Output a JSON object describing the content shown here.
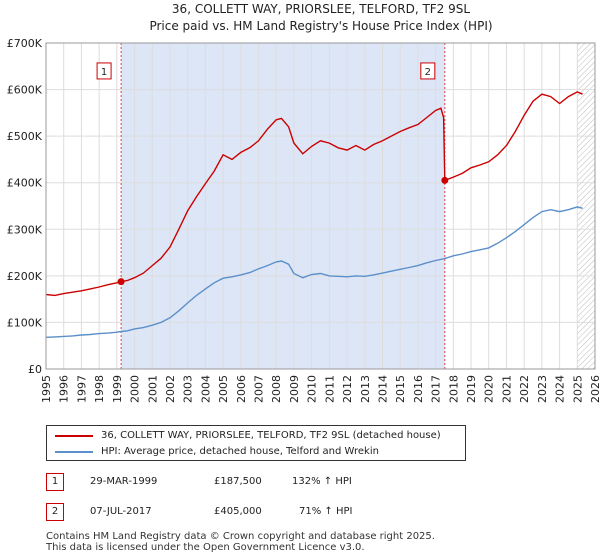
{
  "chart_data": {
    "type": "line",
    "title": "36, COLLETT WAY, PRIORSLEE, TELFORD, TF2 9SL",
    "subtitle": "Price paid vs. HM Land Registry's House Price Index (HPI)",
    "xlabel": "",
    "ylabel": "",
    "xlim": [
      1995,
      2026
    ],
    "ylim": [
      0,
      700000
    ],
    "x_ticks": [
      1995,
      1996,
      1997,
      1998,
      1999,
      2000,
      2001,
      2002,
      2003,
      2004,
      2005,
      2006,
      2007,
      2008,
      2009,
      2010,
      2011,
      2012,
      2013,
      2014,
      2015,
      2016,
      2017,
      2018,
      2019,
      2020,
      2021,
      2022,
      2023,
      2024,
      2025,
      2026
    ],
    "y_ticks": [
      {
        "value": 0,
        "label": "£0"
      },
      {
        "value": 100000,
        "label": "£100K"
      },
      {
        "value": 200000,
        "label": "£200K"
      },
      {
        "value": 300000,
        "label": "£300K"
      },
      {
        "value": 400000,
        "label": "£400K"
      },
      {
        "value": 500000,
        "label": "£500K"
      },
      {
        "value": 600000,
        "label": "£600K"
      },
      {
        "value": 700000,
        "label": "£700K"
      }
    ],
    "grid": true,
    "sale_period_shading": [
      1999.24,
      2017.52
    ],
    "future_hatch_start": 2025.0,
    "colors": {
      "property": "#cc0000",
      "hpi": "#5b8fc9",
      "shade": "#dde6f7",
      "marker_line": "#dd4444"
    },
    "series": [
      {
        "name": "36, COLLETT WAY, PRIORSLEE, TELFORD, TF2 9SL (detached house)",
        "color": "#cc0000",
        "points": [
          [
            1995.0,
            160000
          ],
          [
            1995.5,
            158000
          ],
          [
            1996.0,
            162000
          ],
          [
            1996.5,
            165000
          ],
          [
            1997.0,
            168000
          ],
          [
            1997.5,
            172000
          ],
          [
            1998.0,
            176000
          ],
          [
            1998.5,
            181000
          ],
          [
            1999.0,
            185000
          ],
          [
            1999.24,
            187500
          ],
          [
            1999.6,
            190000
          ],
          [
            2000.0,
            196000
          ],
          [
            2000.5,
            206000
          ],
          [
            2001.0,
            222000
          ],
          [
            2001.5,
            238000
          ],
          [
            2002.0,
            262000
          ],
          [
            2002.5,
            300000
          ],
          [
            2003.0,
            340000
          ],
          [
            2003.5,
            370000
          ],
          [
            2004.0,
            398000
          ],
          [
            2004.5,
            425000
          ],
          [
            2005.0,
            460000
          ],
          [
            2005.5,
            450000
          ],
          [
            2006.0,
            465000
          ],
          [
            2006.5,
            475000
          ],
          [
            2007.0,
            490000
          ],
          [
            2007.5,
            515000
          ],
          [
            2008.0,
            535000
          ],
          [
            2008.3,
            538000
          ],
          [
            2008.7,
            520000
          ],
          [
            2009.0,
            485000
          ],
          [
            2009.5,
            462000
          ],
          [
            2010.0,
            478000
          ],
          [
            2010.5,
            490000
          ],
          [
            2011.0,
            485000
          ],
          [
            2011.5,
            475000
          ],
          [
            2012.0,
            470000
          ],
          [
            2012.5,
            480000
          ],
          [
            2013.0,
            470000
          ],
          [
            2013.5,
            482000
          ],
          [
            2014.0,
            490000
          ],
          [
            2014.5,
            500000
          ],
          [
            2015.0,
            510000
          ],
          [
            2015.5,
            518000
          ],
          [
            2016.0,
            525000
          ],
          [
            2016.5,
            540000
          ],
          [
            2017.0,
            555000
          ],
          [
            2017.3,
            560000
          ],
          [
            2017.45,
            540000
          ],
          [
            2017.52,
            405000
          ],
          [
            2018.0,
            412000
          ],
          [
            2018.5,
            420000
          ],
          [
            2019.0,
            432000
          ],
          [
            2019.5,
            438000
          ],
          [
            2020.0,
            445000
          ],
          [
            2020.5,
            460000
          ],
          [
            2021.0,
            480000
          ],
          [
            2021.5,
            510000
          ],
          [
            2022.0,
            545000
          ],
          [
            2022.5,
            575000
          ],
          [
            2023.0,
            590000
          ],
          [
            2023.5,
            585000
          ],
          [
            2024.0,
            570000
          ],
          [
            2024.5,
            585000
          ],
          [
            2025.0,
            595000
          ],
          [
            2025.3,
            590000
          ]
        ]
      },
      {
        "name": "HPI: Average price, detached house, Telford and Wrekin",
        "color": "#5b8fc9",
        "points": [
          [
            1995.0,
            68000
          ],
          [
            1995.5,
            69000
          ],
          [
            1996.0,
            70000
          ],
          [
            1996.5,
            71000
          ],
          [
            1997.0,
            73000
          ],
          [
            1997.5,
            74000
          ],
          [
            1998.0,
            76000
          ],
          [
            1998.5,
            77000
          ],
          [
            1999.0,
            79000
          ],
          [
            1999.24,
            80500
          ],
          [
            1999.6,
            82000
          ],
          [
            2000.0,
            86000
          ],
          [
            2000.5,
            89000
          ],
          [
            2001.0,
            94000
          ],
          [
            2001.5,
            100000
          ],
          [
            2002.0,
            110000
          ],
          [
            2002.5,
            125000
          ],
          [
            2003.0,
            142000
          ],
          [
            2003.5,
            158000
          ],
          [
            2004.0,
            172000
          ],
          [
            2004.5,
            185000
          ],
          [
            2005.0,
            195000
          ],
          [
            2005.5,
            198000
          ],
          [
            2006.0,
            202000
          ],
          [
            2006.5,
            207000
          ],
          [
            2007.0,
            215000
          ],
          [
            2007.5,
            222000
          ],
          [
            2008.0,
            230000
          ],
          [
            2008.3,
            232000
          ],
          [
            2008.7,
            225000
          ],
          [
            2009.0,
            205000
          ],
          [
            2009.5,
            196000
          ],
          [
            2010.0,
            203000
          ],
          [
            2010.5,
            205000
          ],
          [
            2011.0,
            200000
          ],
          [
            2011.5,
            199000
          ],
          [
            2012.0,
            198000
          ],
          [
            2012.5,
            200000
          ],
          [
            2013.0,
            199000
          ],
          [
            2013.5,
            202000
          ],
          [
            2014.0,
            206000
          ],
          [
            2014.5,
            210000
          ],
          [
            2015.0,
            214000
          ],
          [
            2015.5,
            218000
          ],
          [
            2016.0,
            222000
          ],
          [
            2016.5,
            228000
          ],
          [
            2017.0,
            233000
          ],
          [
            2017.52,
            237000
          ],
          [
            2018.0,
            243000
          ],
          [
            2018.5,
            247000
          ],
          [
            2019.0,
            252000
          ],
          [
            2019.5,
            256000
          ],
          [
            2020.0,
            260000
          ],
          [
            2020.5,
            270000
          ],
          [
            2021.0,
            282000
          ],
          [
            2021.5,
            295000
          ],
          [
            2022.0,
            310000
          ],
          [
            2022.5,
            325000
          ],
          [
            2023.0,
            338000
          ],
          [
            2023.5,
            342000
          ],
          [
            2024.0,
            338000
          ],
          [
            2024.5,
            342000
          ],
          [
            2025.0,
            348000
          ],
          [
            2025.3,
            345000
          ]
        ]
      }
    ],
    "annotations": [
      {
        "label": "1",
        "x": 1999.24,
        "y": 187500,
        "box_y": 640000
      },
      {
        "label": "2",
        "x": 2017.52,
        "y": 405000,
        "box_y": 640000
      }
    ]
  },
  "legend": {
    "property_label": "36, COLLETT WAY, PRIORSLEE, TELFORD, TF2 9SL (detached house)",
    "hpi_label": "HPI: Average price, detached house, Telford and Wrekin"
  },
  "transactions": [
    {
      "num": "1",
      "date": "29-MAR-1999",
      "price": "£187,500",
      "hpi": "132% ↑ HPI"
    },
    {
      "num": "2",
      "date": "07-JUL-2017",
      "price": "£405,000",
      "hpi": "71% ↑ HPI"
    }
  ],
  "footer": {
    "line1": "Contains HM Land Registry data © Crown copyright and database right 2025.",
    "line2": "This data is licensed under the Open Government Licence v3.0."
  }
}
